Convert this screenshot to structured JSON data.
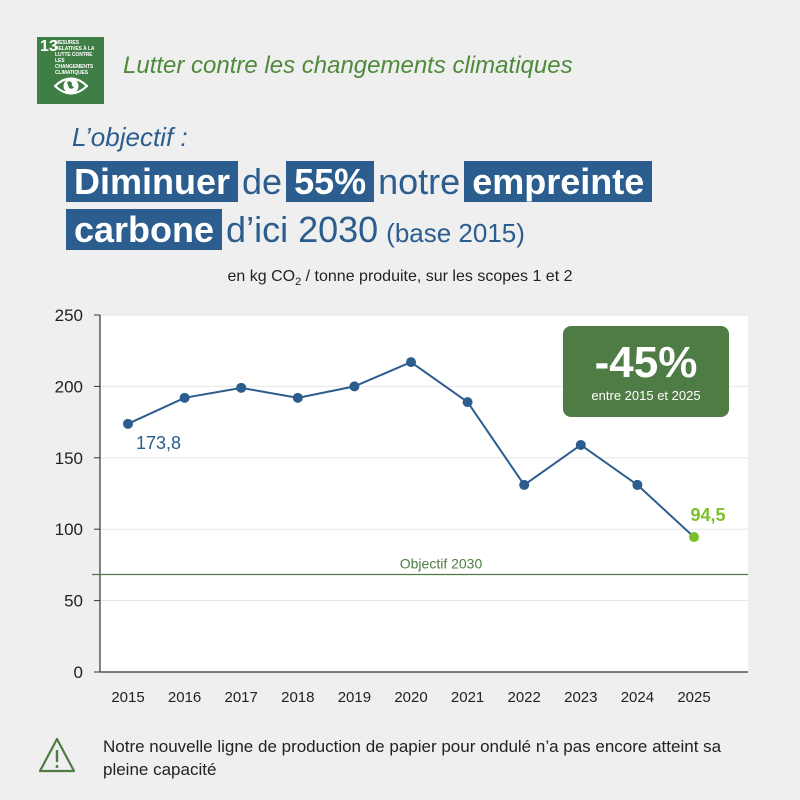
{
  "badge": {
    "number": "13",
    "text": "MESURES RELATIVES À LA LUTTE CONTRE LES CHANGEMENTS CLIMATIQUES",
    "icon": "eye-globe-icon",
    "color": "#3f7e44"
  },
  "header": {
    "theme_title": "Lutter contre les changements climatiques",
    "objective_label": "L’objectif :",
    "headline": {
      "part1": "Diminuer",
      "part2": "de",
      "part3": "55%",
      "part4": "notre",
      "part5": "empreinte",
      "part6": "carbone",
      "part7": "d’ici 2030",
      "part8": "(base 2015)"
    }
  },
  "unit_note": {
    "prefix": "en kg CO",
    "sub": "2",
    "suffix": " / tonne produite, sur les scopes 1 et 2"
  },
  "chart_data": {
    "type": "line",
    "x": [
      "2015",
      "2016",
      "2017",
      "2018",
      "2019",
      "2020",
      "2021",
      "2022",
      "2023",
      "2024",
      "2025"
    ],
    "series": [
      {
        "values": [
          173.8,
          192,
          199,
          192,
          200,
          217,
          189,
          131,
          159,
          131,
          94.5
        ],
        "color": "#2b5d8e"
      }
    ],
    "ylim": [
      0,
      250
    ],
    "yticks": [
      0,
      50,
      100,
      150,
      200,
      250
    ],
    "grid": true,
    "annotations": {
      "start_label": "173,8",
      "end_label": "94,5",
      "end_color": "#7bbf2a",
      "target_line_value": 68.3,
      "target_label": "Objectif 2030",
      "target_color": "#4f7c44"
    }
  },
  "callout": {
    "value": "-45%",
    "sub": "entre 2015 et 2025",
    "color": "#4f7c44"
  },
  "footnote": {
    "icon": "warning-triangle-icon",
    "text": "Notre nouvelle ligne de production de papier pour ondulé n’a pas encore atteint sa pleine capacité"
  }
}
